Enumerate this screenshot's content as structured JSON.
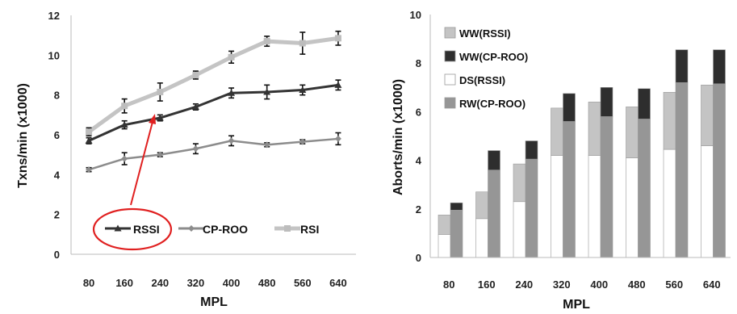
{
  "chart_data": [
    {
      "type": "line",
      "x": [
        80,
        160,
        240,
        320,
        400,
        480,
        560,
        640
      ],
      "xlabel": "MPL",
      "ylabel": "Txns/min (x1000)",
      "ylim": [
        0,
        12
      ],
      "yticks": [
        0,
        2,
        4,
        6,
        8,
        10,
        12
      ],
      "grid": false,
      "legend_position": "bottom-center",
      "series": [
        {
          "name": "RSSI",
          "color": "#333333",
          "marker": "triangle",
          "values": [
            5.7,
            6.5,
            6.85,
            7.4,
            8.1,
            8.15,
            8.25,
            8.5
          ],
          "errors": [
            0.15,
            0.2,
            0.15,
            0.15,
            0.25,
            0.35,
            0.25,
            0.25
          ]
        },
        {
          "name": "CP-ROO",
          "color": "#8c8c8c",
          "marker": "diamond",
          "values": [
            4.25,
            4.8,
            5.0,
            5.3,
            5.7,
            5.5,
            5.65,
            5.8
          ],
          "errors": [
            0.1,
            0.3,
            0.1,
            0.25,
            0.25,
            0.1,
            0.1,
            0.3
          ]
        },
        {
          "name": "RSI",
          "color": "#c4c4c4",
          "marker": "square",
          "values": [
            6.15,
            7.45,
            8.15,
            9.0,
            9.9,
            10.7,
            10.6,
            10.85
          ],
          "errors": [
            0.2,
            0.35,
            0.45,
            0.2,
            0.3,
            0.25,
            0.55,
            0.35
          ]
        }
      ],
      "annotation": {
        "type": "arrow-from-legend",
        "color": "#e02020",
        "target_series": "RSSI",
        "target_x": 240
      }
    },
    {
      "type": "bar",
      "stacked": true,
      "categories": [
        "80",
        "160",
        "240",
        "320",
        "400",
        "480",
        "560",
        "640"
      ],
      "xlabel": "MPL",
      "ylabel": "Aborts/min (x1000)",
      "ylim": [
        0,
        10
      ],
      "yticks": [
        0,
        2,
        4,
        6,
        8,
        10
      ],
      "grid": false,
      "legend_position": "top-left",
      "groups": [
        {
          "name": "RSSI",
          "series": [
            {
              "name": "DS(RSSI)",
              "color": "#ffffff",
              "values": [
                0.95,
                1.6,
                2.3,
                4.2,
                4.2,
                4.1,
                4.45,
                4.6
              ]
            },
            {
              "name": "WW(RSSI)",
              "color": "#c4c4c4",
              "values": [
                0.8,
                1.1,
                1.55,
                1.95,
                2.2,
                2.1,
                2.35,
                2.5
              ]
            }
          ]
        },
        {
          "name": "CP-ROO",
          "series": [
            {
              "name": "RW(CP-ROO)",
              "color": "#969696",
              "values": [
                1.95,
                3.6,
                4.05,
                5.6,
                5.8,
                5.7,
                7.2,
                7.15
              ]
            },
            {
              "name": "WW(CP-ROO)",
              "color": "#2e2e2e",
              "values": [
                0.3,
                0.8,
                0.75,
                1.15,
                1.2,
                1.25,
                1.35,
                1.4
              ]
            }
          ]
        }
      ],
      "legend": [
        "WW(RSSI)",
        "WW(CP-ROO)",
        "DS(RSSI)",
        "RW(CP-ROO)"
      ]
    }
  ]
}
